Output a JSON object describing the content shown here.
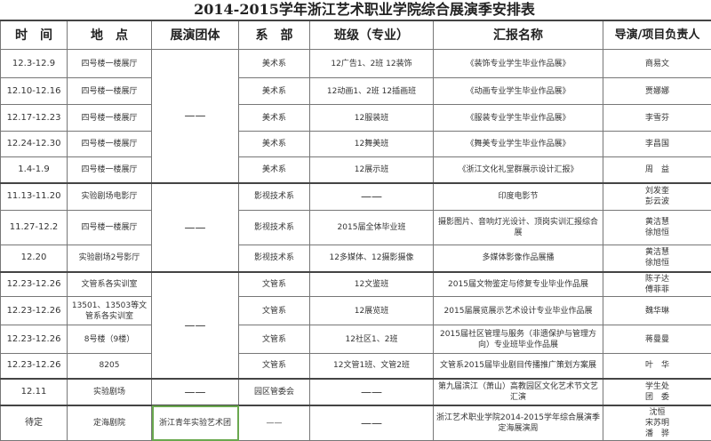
{
  "title": "2014-2015学年浙江艺术职业学院综合展演季安排表",
  "headers": [
    "时　间",
    "地　点",
    "展演团体",
    "系　部",
    "班级（专业）",
    "汇报名称",
    "导演/项目负责人"
  ],
  "groups": [
    "——",
    "——",
    "——"
  ],
  "rows": [
    {
      "time": "12.3-12.9",
      "place": "四号楼一楼展厅",
      "dept": "美术系",
      "cls": "12广告1、2班 12装饰",
      "name": "《装饰专业学生毕业作品展》",
      "lead": "商易文"
    },
    {
      "time": "12.10-12.16",
      "place": "四号楼一楼展厅",
      "dept": "美术系",
      "cls": "12动画1、2班 12插画班",
      "name": "《动画专业学生毕业作品展》",
      "lead": "贾娜娜"
    },
    {
      "time": "12.17-12.23",
      "place": "四号楼一楼展厅",
      "dept": "美术系",
      "cls": "12服装班",
      "name": "《服装专业学生毕业作品展》",
      "lead": "李雪芬"
    },
    {
      "time": "12.24-12.30",
      "place": "四号楼一楼展厅",
      "dept": "美术系",
      "cls": "12舞美班",
      "name": "《舞美专业学生毕业作品展》",
      "lead": "李昌国"
    },
    {
      "time": "1.4-1.9",
      "place": "四号楼一楼展厅",
      "dept": "美术系",
      "cls": "12展示班",
      "name": "《浙江文化礼堂群展示设计汇报》",
      "lead": "周　益"
    },
    {
      "time": "11.13-11.20",
      "place": "实验剧场电影厅",
      "dept": "影视技术系",
      "cls": "——",
      "name": "印度电影节",
      "lead": "刘发奎\n彭云波"
    },
    {
      "time": "11.27-12.2",
      "place": "四号楼一楼展厅",
      "dept": "影视技术系",
      "cls": "2015届全体毕业班",
      "name": "摄影图片、音响灯光设计、顶岗实训汇报综合展",
      "lead": "黄洁慧\n徐旭恒"
    },
    {
      "time": "12.20",
      "place": "实验剧场2号影厅",
      "dept": "影视技术系",
      "cls": "12多媒体、12摄影摄像",
      "name": "多媒体影像作品展播",
      "lead": "黄洁慧\n徐旭恒"
    },
    {
      "time": "12.23-12.26",
      "place": "文管系各实训室",
      "dept": "文管系",
      "cls": "12文鉴班",
      "name": "2015届文物鉴定与修复专业毕业作品展",
      "lead": "陈子达\n傅菲菲"
    },
    {
      "time": "12.23-12.26",
      "place": "13501、13503等文管系各实训室",
      "dept": "文管系",
      "cls": "12展览班",
      "name": "2015届展览展示艺术设计专业毕业作品展",
      "lead": "魏华琳"
    },
    {
      "time": "12.23-12.26",
      "place": "8号楼（9楼）",
      "dept": "文管系",
      "cls": "12社区1、2班",
      "name": "2015届社区管理与服务（非遗保护与管理方向）专业班毕业作品展",
      "lead": "蒋曼曼"
    },
    {
      "time": "12.23-12.26",
      "place": "8205",
      "dept": "文管系",
      "cls": "12文管1班、文管2班",
      "name": "文管系2015届毕业剧目传播推广策划方案展",
      "lead": "叶　华"
    },
    {
      "time": "12.11",
      "place": "实验剧场",
      "group": "——",
      "dept": "园区管委会",
      "cls": "——",
      "name": "第九届滨江（萧山）高教园区文化艺术节文艺汇演",
      "lead": "学生处\n团　委"
    },
    {
      "time": "待定",
      "place": "定海剧院",
      "group": "浙江青年实验艺术团",
      "dept": "——",
      "cls": "——",
      "name": "浙江艺术职业学院2014-2015学年综合展演季定海展演周",
      "lead": "沈恒\n宋苏明\n潘　骅"
    }
  ]
}
